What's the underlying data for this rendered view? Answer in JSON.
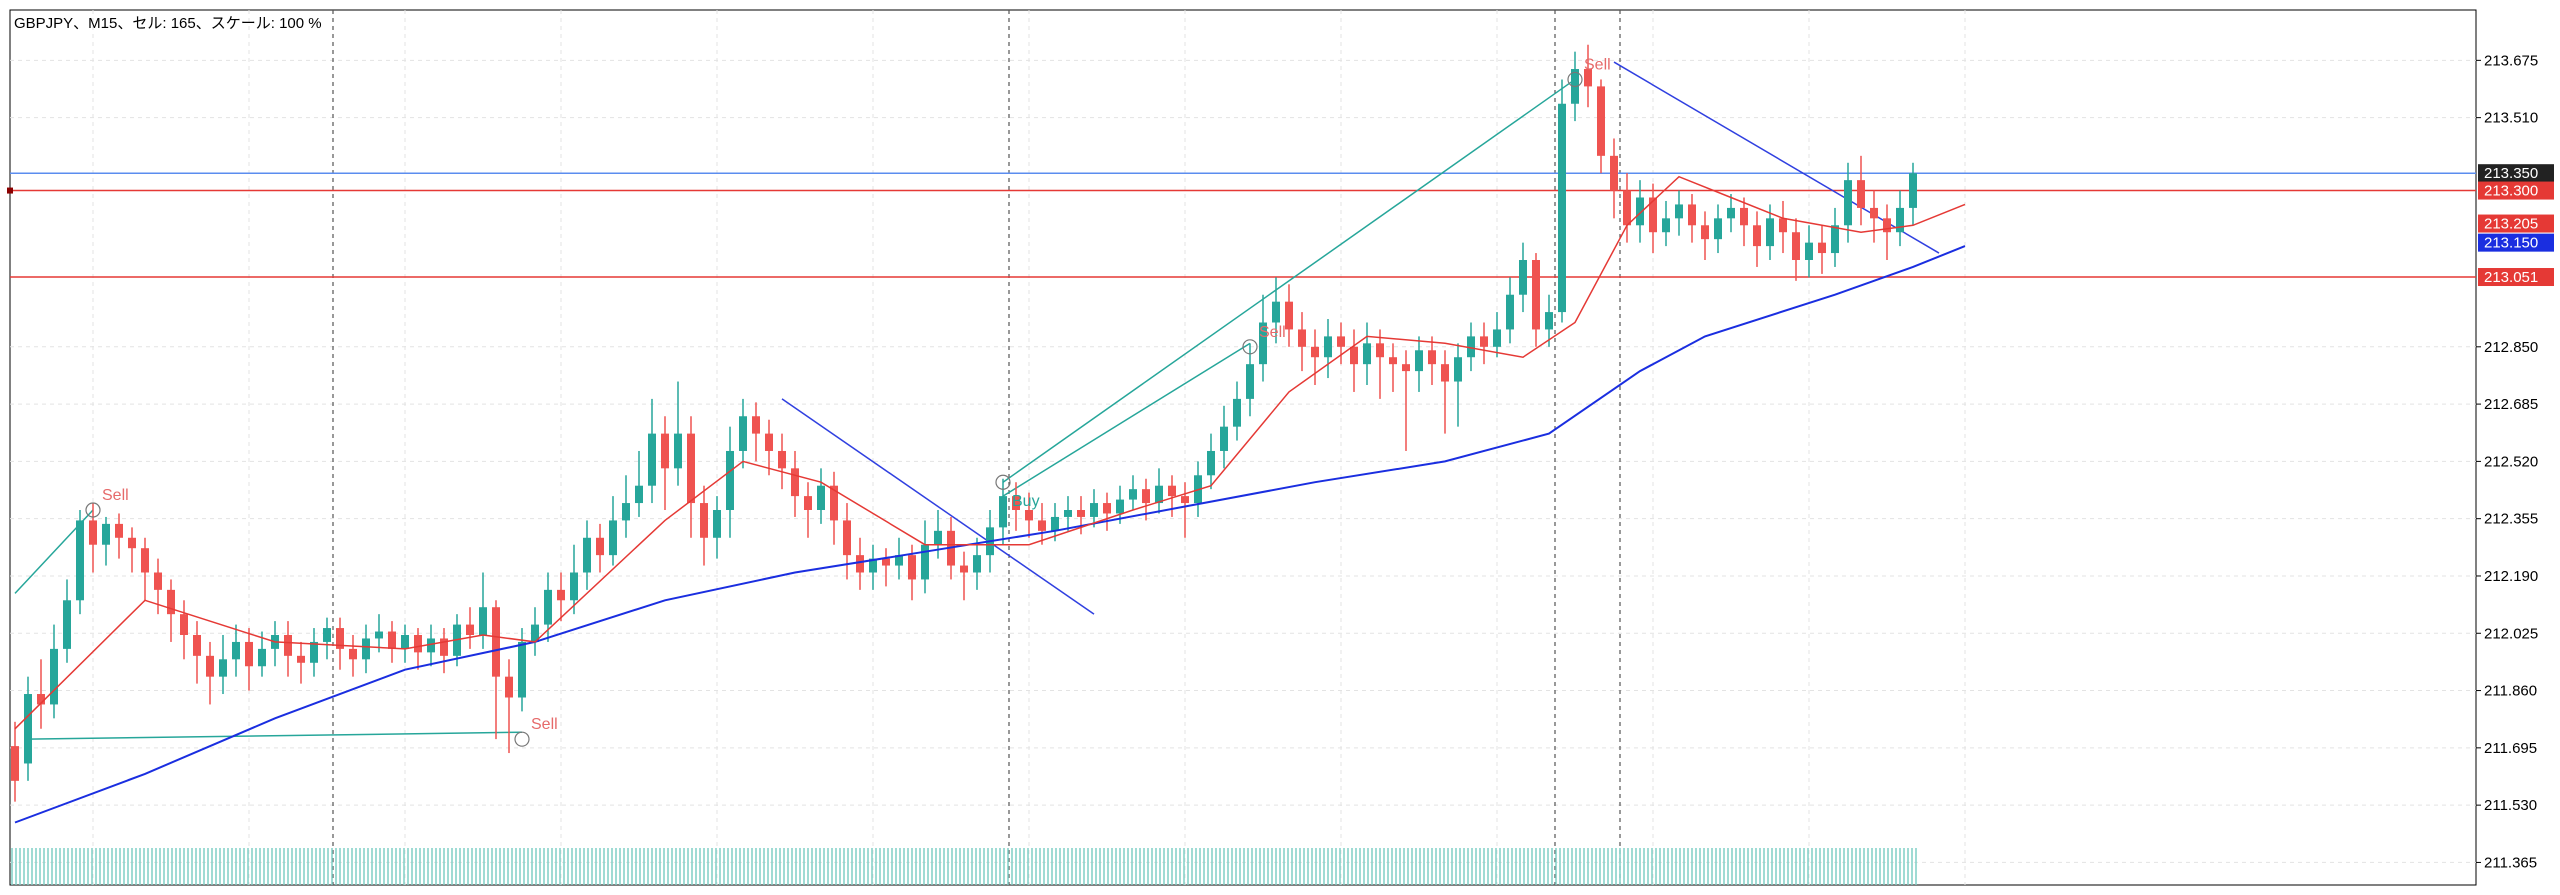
{
  "info": {
    "text": "GBPJPY、M15、セル: 165、スケール: 100 %"
  },
  "colors": {
    "bull": "#26a69a",
    "bear": "#ef5350",
    "ma_fast": "#e53935",
    "ma_slow": "#1a2ee0",
    "trend": "#3040e0",
    "channel": "#26a69a",
    "hline_red": "#e53935",
    "hline_blue": "#5b8def",
    "grid": "#e3e3e3",
    "separator": "#555555",
    "volume": "#7fcfc6",
    "signal_text": "#e66a6a",
    "signal_buy_text": "#26a69a"
  },
  "icons": {
    "bar_marker": "square-marker-icon"
  },
  "chart_data": {
    "type": "candlestick",
    "symbol": "GBPJPY",
    "timeframe": "M15",
    "ylim": [
      211.3,
      213.82
    ],
    "y_ticks": [
      "213.675",
      "213.510",
      "213.350",
      "213.300",
      "213.205",
      "213.150",
      "213.051",
      "212.850",
      "212.685",
      "212.520",
      "212.355",
      "212.190",
      "212.025",
      "211.860",
      "211.695",
      "211.530",
      "211.365"
    ],
    "plain_ticks": [
      "213.675",
      "213.510",
      "212.850",
      "212.685",
      "212.520",
      "212.355",
      "212.190",
      "212.025",
      "211.860",
      "211.695",
      "211.530",
      "211.365"
    ],
    "x_range": [
      0,
      151
    ],
    "candles": [
      [
        211.7,
        211.6,
        211.77,
        211.54
      ],
      [
        211.65,
        211.85,
        211.9,
        211.6
      ],
      [
        211.85,
        211.82,
        211.95,
        211.75
      ],
      [
        211.82,
        211.98,
        212.05,
        211.78
      ],
      [
        211.98,
        212.12,
        212.18,
        211.94
      ],
      [
        212.12,
        212.35,
        212.38,
        212.08
      ],
      [
        212.35,
        212.28,
        212.4,
        212.2
      ],
      [
        212.28,
        212.34,
        212.36,
        212.22
      ],
      [
        212.34,
        212.3,
        212.37,
        212.24
      ],
      [
        212.3,
        212.27,
        212.33,
        212.2
      ],
      [
        212.27,
        212.2,
        212.3,
        212.12
      ],
      [
        212.2,
        212.15,
        212.24,
        212.08
      ],
      [
        212.15,
        212.08,
        212.18,
        212.0
      ],
      [
        212.08,
        212.02,
        212.12,
        211.95
      ],
      [
        212.02,
        211.96,
        212.06,
        211.88
      ],
      [
        211.96,
        211.9,
        212.0,
        211.82
      ],
      [
        211.9,
        211.95,
        212.02,
        211.85
      ],
      [
        211.95,
        212.0,
        212.05,
        211.9
      ],
      [
        212.0,
        211.93,
        212.04,
        211.86
      ],
      [
        211.93,
        211.98,
        212.03,
        211.9
      ],
      [
        211.98,
        212.02,
        212.06,
        211.93
      ],
      [
        212.02,
        211.96,
        212.06,
        211.9
      ],
      [
        211.96,
        211.94,
        212.0,
        211.88
      ],
      [
        211.94,
        212.0,
        212.04,
        211.9
      ],
      [
        212.0,
        212.04,
        212.07,
        211.95
      ],
      [
        212.04,
        211.98,
        212.07,
        211.92
      ],
      [
        211.98,
        211.95,
        212.02,
        211.9
      ],
      [
        211.95,
        212.01,
        212.05,
        211.91
      ],
      [
        212.01,
        212.03,
        212.08,
        211.97
      ],
      [
        212.03,
        211.98,
        212.06,
        211.94
      ],
      [
        211.98,
        212.02,
        212.05,
        211.94
      ],
      [
        212.02,
        211.97,
        212.04,
        211.92
      ],
      [
        211.97,
        212.01,
        212.05,
        211.93
      ],
      [
        212.01,
        211.96,
        212.04,
        211.91
      ],
      [
        211.96,
        212.05,
        212.08,
        211.93
      ],
      [
        212.05,
        212.02,
        212.1,
        211.98
      ],
      [
        212.02,
        212.1,
        212.2,
        211.98
      ],
      [
        212.1,
        211.9,
        212.12,
        211.72
      ],
      [
        211.9,
        211.84,
        211.95,
        211.68
      ],
      [
        211.84,
        212.0,
        212.04,
        211.8
      ],
      [
        212.0,
        212.05,
        212.1,
        211.96
      ],
      [
        212.05,
        212.15,
        212.2,
        212.0
      ],
      [
        212.15,
        212.12,
        212.2,
        212.06
      ],
      [
        212.12,
        212.2,
        212.28,
        212.08
      ],
      [
        212.2,
        212.3,
        212.35,
        212.15
      ],
      [
        212.3,
        212.25,
        212.34,
        212.2
      ],
      [
        212.25,
        212.35,
        212.42,
        212.22
      ],
      [
        212.35,
        212.4,
        212.48,
        212.3
      ],
      [
        212.4,
        212.45,
        212.55,
        212.36
      ],
      [
        212.45,
        212.6,
        212.7,
        212.4
      ],
      [
        212.6,
        212.5,
        212.65,
        212.38
      ],
      [
        212.5,
        212.6,
        212.75,
        212.45
      ],
      [
        212.6,
        212.4,
        212.65,
        212.3
      ],
      [
        212.4,
        212.3,
        212.45,
        212.22
      ],
      [
        212.3,
        212.38,
        212.42,
        212.24
      ],
      [
        212.38,
        212.55,
        212.62,
        212.3
      ],
      [
        212.55,
        212.65,
        212.7,
        212.5
      ],
      [
        212.65,
        212.6,
        212.69,
        212.52
      ],
      [
        212.6,
        212.55,
        212.64,
        212.48
      ],
      [
        212.55,
        212.5,
        212.6,
        212.44
      ],
      [
        212.5,
        212.42,
        212.55,
        212.36
      ],
      [
        212.42,
        212.38,
        212.46,
        212.3
      ],
      [
        212.38,
        212.45,
        212.5,
        212.34
      ],
      [
        212.45,
        212.35,
        212.49,
        212.28
      ],
      [
        212.35,
        212.25,
        212.4,
        212.18
      ],
      [
        212.25,
        212.2,
        212.3,
        212.15
      ],
      [
        212.2,
        212.24,
        212.28,
        212.15
      ],
      [
        212.24,
        212.22,
        212.27,
        212.16
      ],
      [
        212.22,
        212.25,
        212.3,
        212.18
      ],
      [
        212.25,
        212.18,
        212.28,
        212.12
      ],
      [
        212.18,
        212.28,
        212.35,
        212.14
      ],
      [
        212.28,
        212.32,
        212.38,
        212.24
      ],
      [
        212.32,
        212.22,
        212.36,
        212.18
      ],
      [
        212.22,
        212.2,
        212.26,
        212.12
      ],
      [
        212.2,
        212.25,
        212.3,
        212.15
      ],
      [
        212.25,
        212.33,
        212.38,
        212.2
      ],
      [
        212.33,
        212.42,
        212.47,
        212.28
      ],
      [
        212.42,
        212.38,
        212.46,
        212.32
      ],
      [
        212.38,
        212.35,
        212.43,
        212.3
      ],
      [
        212.35,
        212.32,
        212.4,
        212.28
      ],
      [
        212.32,
        212.36,
        212.4,
        212.29
      ],
      [
        212.36,
        212.38,
        212.42,
        212.32
      ],
      [
        212.38,
        212.36,
        212.42,
        212.31
      ],
      [
        212.36,
        212.4,
        212.44,
        212.33
      ],
      [
        212.4,
        212.37,
        212.43,
        212.32
      ],
      [
        212.37,
        212.41,
        212.45,
        212.34
      ],
      [
        212.41,
        212.44,
        212.48,
        212.38
      ],
      [
        212.44,
        212.4,
        212.47,
        212.35
      ],
      [
        212.4,
        212.45,
        212.5,
        212.37
      ],
      [
        212.45,
        212.42,
        212.48,
        212.36
      ],
      [
        212.42,
        212.4,
        212.46,
        212.3
      ],
      [
        212.4,
        212.48,
        212.52,
        212.36
      ],
      [
        212.48,
        212.55,
        212.6,
        212.44
      ],
      [
        212.55,
        212.62,
        212.68,
        212.5
      ],
      [
        212.62,
        212.7,
        212.75,
        212.58
      ],
      [
        212.7,
        212.8,
        212.86,
        212.65
      ],
      [
        212.8,
        212.92,
        213.0,
        212.75
      ],
      [
        212.92,
        212.98,
        213.05,
        212.86
      ],
      [
        212.98,
        212.9,
        213.03,
        212.85
      ],
      [
        212.9,
        212.85,
        212.95,
        212.78
      ],
      [
        212.85,
        212.82,
        212.9,
        212.74
      ],
      [
        212.82,
        212.88,
        212.93,
        212.76
      ],
      [
        212.88,
        212.85,
        212.92,
        212.8
      ],
      [
        212.85,
        212.8,
        212.9,
        212.72
      ],
      [
        212.8,
        212.86,
        212.92,
        212.74
      ],
      [
        212.86,
        212.82,
        212.9,
        212.7
      ],
      [
        212.82,
        212.8,
        212.86,
        212.72
      ],
      [
        212.8,
        212.78,
        212.84,
        212.55
      ],
      [
        212.78,
        212.84,
        212.88,
        212.72
      ],
      [
        212.84,
        212.8,
        212.88,
        212.74
      ],
      [
        212.8,
        212.75,
        212.84,
        212.6
      ],
      [
        212.75,
        212.82,
        212.86,
        212.62
      ],
      [
        212.82,
        212.88,
        212.92,
        212.78
      ],
      [
        212.88,
        212.85,
        212.92,
        212.8
      ],
      [
        212.85,
        212.9,
        212.95,
        212.82
      ],
      [
        212.9,
        213.0,
        213.05,
        212.86
      ],
      [
        213.0,
        213.1,
        213.15,
        212.95
      ],
      [
        213.1,
        212.9,
        213.12,
        212.85
      ],
      [
        212.9,
        212.95,
        213.0,
        212.85
      ],
      [
        212.95,
        213.55,
        213.62,
        212.92
      ],
      [
        213.55,
        213.65,
        213.7,
        213.5
      ],
      [
        213.65,
        213.6,
        213.72,
        213.54
      ],
      [
        213.6,
        213.4,
        213.62,
        213.35
      ],
      [
        213.4,
        213.3,
        213.45,
        213.22
      ],
      [
        213.3,
        213.2,
        213.35,
        213.15
      ],
      [
        213.2,
        213.28,
        213.33,
        213.15
      ],
      [
        213.28,
        213.18,
        213.32,
        213.12
      ],
      [
        213.18,
        213.22,
        213.27,
        213.14
      ],
      [
        213.22,
        213.26,
        213.3,
        213.17
      ],
      [
        213.26,
        213.2,
        213.29,
        213.15
      ],
      [
        213.2,
        213.16,
        213.24,
        213.1
      ],
      [
        213.16,
        213.22,
        213.26,
        213.12
      ],
      [
        213.22,
        213.25,
        213.29,
        213.18
      ],
      [
        213.25,
        213.2,
        213.28,
        213.14
      ],
      [
        213.2,
        213.14,
        213.24,
        213.08
      ],
      [
        213.14,
        213.22,
        213.26,
        213.1
      ],
      [
        213.22,
        213.18,
        213.27,
        213.12
      ],
      [
        213.18,
        213.1,
        213.22,
        213.04
      ],
      [
        213.1,
        213.15,
        213.2,
        213.05
      ],
      [
        213.15,
        213.12,
        213.2,
        213.06
      ],
      [
        213.12,
        213.2,
        213.25,
        213.08
      ],
      [
        213.2,
        213.33,
        213.38,
        213.15
      ],
      [
        213.33,
        213.25,
        213.4,
        213.2
      ],
      [
        213.25,
        213.22,
        213.3,
        213.15
      ],
      [
        213.22,
        213.18,
        213.26,
        213.1
      ],
      [
        213.18,
        213.25,
        213.3,
        213.14
      ],
      [
        213.25,
        213.35,
        213.38,
        213.2
      ]
    ],
    "ma_fast": [
      [
        0,
        211.75
      ],
      [
        10,
        212.12
      ],
      [
        20,
        212.0
      ],
      [
        30,
        211.98
      ],
      [
        36,
        212.02
      ],
      [
        40,
        212.0
      ],
      [
        50,
        212.35
      ],
      [
        56,
        212.52
      ],
      [
        62,
        212.46
      ],
      [
        70,
        212.28
      ],
      [
        78,
        212.28
      ],
      [
        86,
        212.38
      ],
      [
        92,
        212.45
      ],
      [
        98,
        212.72
      ],
      [
        104,
        212.88
      ],
      [
        110,
        212.86
      ],
      [
        116,
        212.82
      ],
      [
        120,
        212.92
      ],
      [
        124,
        213.2
      ],
      [
        128,
        213.34
      ],
      [
        132,
        213.28
      ],
      [
        136,
        213.22
      ],
      [
        142,
        213.18
      ],
      [
        146,
        213.2
      ],
      [
        150,
        213.26
      ]
    ],
    "ma_slow": [
      [
        0,
        211.48
      ],
      [
        10,
        211.62
      ],
      [
        20,
        211.78
      ],
      [
        30,
        211.92
      ],
      [
        40,
        212.0
      ],
      [
        50,
        212.12
      ],
      [
        60,
        212.2
      ],
      [
        70,
        212.26
      ],
      [
        80,
        212.32
      ],
      [
        90,
        212.39
      ],
      [
        100,
        212.46
      ],
      [
        110,
        212.52
      ],
      [
        118,
        212.6
      ],
      [
        125,
        212.78
      ],
      [
        130,
        212.88
      ],
      [
        140,
        213.0
      ],
      [
        146,
        213.08
      ],
      [
        150,
        213.14
      ]
    ],
    "hlines": [
      {
        "price": 213.35,
        "color": "#5b8def",
        "label": "213.350",
        "label_bg": "#222222",
        "label_fg": "#ffffff"
      },
      {
        "price": 213.3,
        "color": "#e53935",
        "label": "213.300",
        "label_bg": "#e53935",
        "label_fg": "#ffffff"
      },
      {
        "price": 213.051,
        "color": "#e53935",
        "label": "213.051",
        "label_bg": "#e53935",
        "label_fg": "#ffffff"
      }
    ],
    "price_labels": [
      {
        "price": 213.205,
        "label": "213.205",
        "bg": "#e53935",
        "fg": "#ffffff"
      },
      {
        "price": 213.15,
        "label": "213.150",
        "bg": "#1a2ee0",
        "fg": "#ffffff"
      }
    ],
    "separators": [
      24,
      76,
      118,
      123
    ],
    "trendlines": [
      {
        "from": [
          59,
          212.7
        ],
        "to": [
          83,
          212.08
        ],
        "color": "#3040e0"
      },
      {
        "from": [
          123,
          213.67
        ],
        "to": [
          148,
          213.12
        ],
        "color": "#3040e0"
      },
      {
        "from": [
          0,
          212.14
        ],
        "to": [
          6,
          212.38
        ],
        "color": "#26a69a"
      },
      {
        "from": [
          1,
          211.72
        ],
        "to": [
          39,
          211.74
        ],
        "color": "#26a69a"
      },
      {
        "from": [
          76,
          212.46
        ],
        "to": [
          120,
          213.62
        ],
        "color": "#26a69a"
      },
      {
        "from": [
          76,
          212.42
        ],
        "to": [
          95,
          212.86
        ],
        "color": "#26a69a"
      }
    ],
    "signals": [
      {
        "x": 6,
        "price": 212.38,
        "label": "Sell",
        "kind": "sell"
      },
      {
        "x": 39,
        "price": 211.72,
        "label": "Sell",
        "kind": "sell"
      },
      {
        "x": 76,
        "price": 212.46,
        "label": "Buy",
        "kind": "buy"
      },
      {
        "x": 95,
        "price": 212.85,
        "label": "Sell",
        "kind": "sell"
      },
      {
        "x": 120,
        "price": 213.62,
        "label": "Sell",
        "kind": "sell"
      }
    ]
  }
}
